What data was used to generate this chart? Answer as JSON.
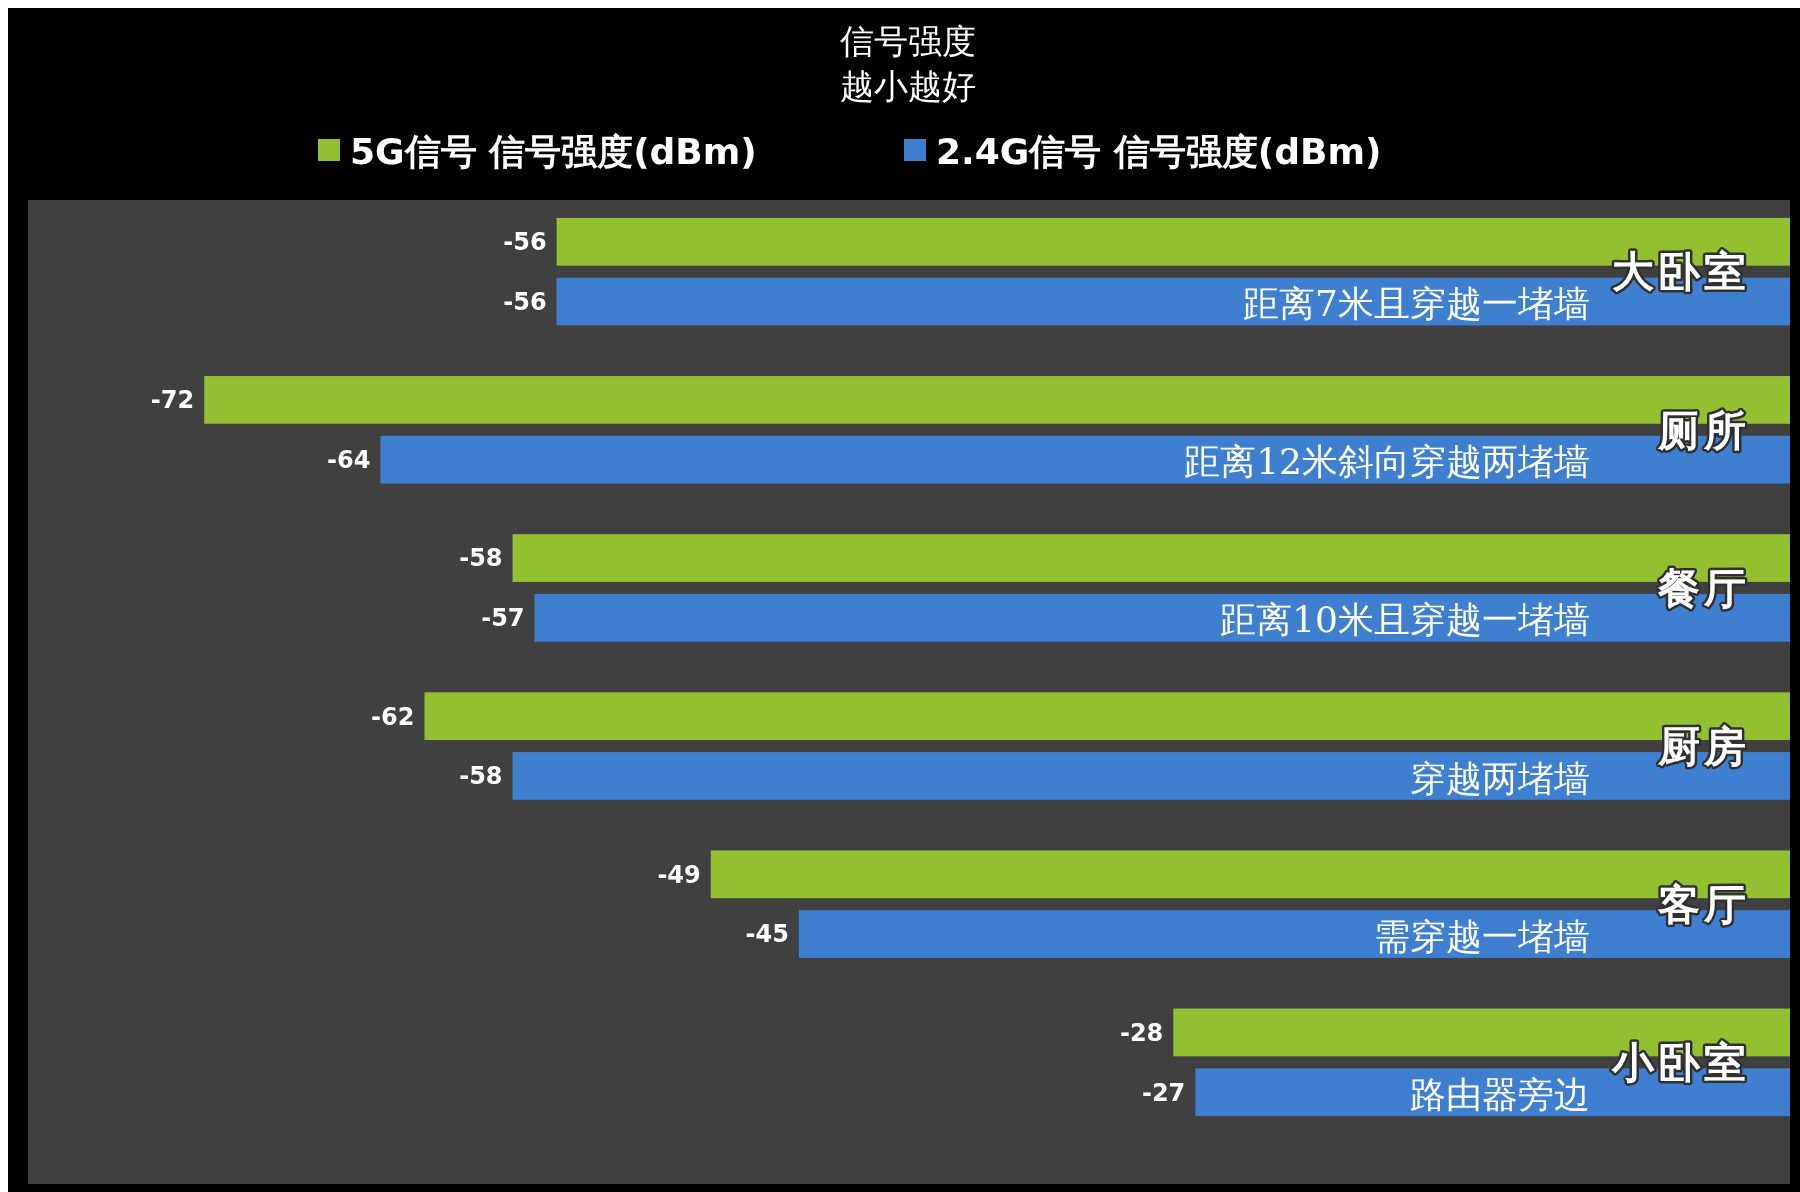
{
  "chart_data": {
    "type": "bar",
    "orientation": "horizontal",
    "title": "信号强度",
    "subtitle": "越小越好",
    "categories": [
      "大卧室",
      "厕所",
      "餐厅",
      "厨房",
      "客厅",
      "小卧室"
    ],
    "series": [
      {
        "name": "5G信号 信号强度(dBm)",
        "color": "#92c030",
        "values": [
          -56,
          -72,
          -58,
          -62,
          -49,
          -28
        ]
      },
      {
        "name": "2.4G信号 信号强度(dBm)",
        "color": "#3f7fd0",
        "values": [
          -56,
          -64,
          -57,
          -58,
          -45,
          -27
        ]
      }
    ],
    "xlim": [
      -80,
      0
    ],
    "data_labels": true,
    "legend": "top",
    "annotations": [
      "距离7米且穿越一堵墙",
      "距离12米斜向穿越两堵墙",
      "距离10米且穿越一堵墙",
      "穿越两堵墙",
      "需穿越一堵墙",
      "路由器旁边"
    ]
  }
}
